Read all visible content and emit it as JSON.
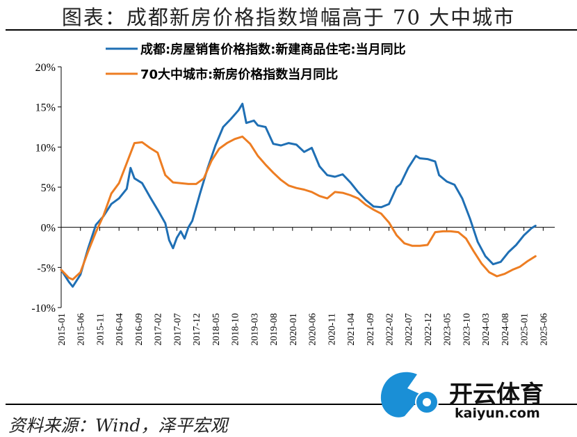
{
  "header": {
    "title": "图表：成都新房价格指数增幅高于 70 大中城市"
  },
  "footer": {
    "source": "资料来源：Wind，泽平宏观"
  },
  "watermark": {
    "brand_cn": "开云体育",
    "brand_en": "kaiyun.com",
    "colors": {
      "blue": "#1a8fd6",
      "dark": "#111111"
    }
  },
  "chart_data": {
    "type": "line",
    "title": "",
    "xlabel": "",
    "ylabel": "",
    "ylim": [
      -10,
      20
    ],
    "yticks": [
      -10,
      -5,
      0,
      5,
      10,
      15,
      20
    ],
    "ytick_labels": [
      "-10%",
      "-5%",
      "0%",
      "5%",
      "10%",
      "15%",
      "20%"
    ],
    "xlim": [
      "2015-01",
      "2025-09"
    ],
    "xtick_labels": [
      "2015-01",
      "2015-06",
      "2015-11",
      "2016-04",
      "2016-09",
      "2017-02",
      "2017-07",
      "2017-12",
      "2018-05",
      "2018-10",
      "2019-03",
      "2019-08",
      "2020-01",
      "2020-06",
      "2020-11",
      "2021-04",
      "2021-09",
      "2022-02",
      "2022-07",
      "2022-12",
      "2023-05",
      "2023-10",
      "2024-03",
      "2024-08",
      "2025-01",
      "2025-06"
    ],
    "legend_position": "top-left",
    "grid": false,
    "series": [
      {
        "name": "成都:房屋销售价格指数:新建商品住宅:当月同比",
        "color": "#1f6fb4",
        "points": [
          [
            "2015-01",
            -5.3
          ],
          [
            "2015-03",
            -6.8
          ],
          [
            "2015-04",
            -7.4
          ],
          [
            "2015-06",
            -5.9
          ],
          [
            "2015-08",
            -2.6
          ],
          [
            "2015-10",
            0.3
          ],
          [
            "2015-12",
            1.4
          ],
          [
            "2016-02",
            2.9
          ],
          [
            "2016-04",
            3.6
          ],
          [
            "2016-06",
            4.8
          ],
          [
            "2016-07",
            7.4
          ],
          [
            "2016-08",
            6.1
          ],
          [
            "2016-10",
            5.5
          ],
          [
            "2016-12",
            3.8
          ],
          [
            "2017-02",
            2.2
          ],
          [
            "2017-04",
            0.5
          ],
          [
            "2017-05",
            -1.6
          ],
          [
            "2017-06",
            -2.6
          ],
          [
            "2017-07",
            -1.3
          ],
          [
            "2017-08",
            -0.5
          ],
          [
            "2017-09",
            -1.4
          ],
          [
            "2017-10",
            0.0
          ],
          [
            "2017-11",
            0.8
          ],
          [
            "2018-01",
            4.2
          ],
          [
            "2018-03",
            7.4
          ],
          [
            "2018-05",
            10.2
          ],
          [
            "2018-07",
            12.5
          ],
          [
            "2018-09",
            13.5
          ],
          [
            "2018-11",
            14.6
          ],
          [
            "2018-12",
            15.4
          ],
          [
            "2019-01",
            13.0
          ],
          [
            "2019-03",
            13.3
          ],
          [
            "2019-04",
            12.7
          ],
          [
            "2019-06",
            12.5
          ],
          [
            "2019-08",
            10.4
          ],
          [
            "2019-10",
            10.2
          ],
          [
            "2019-12",
            10.5
          ],
          [
            "2020-02",
            10.3
          ],
          [
            "2020-04",
            9.4
          ],
          [
            "2020-06",
            9.9
          ],
          [
            "2020-08",
            7.6
          ],
          [
            "2020-10",
            6.5
          ],
          [
            "2020-12",
            6.3
          ],
          [
            "2021-02",
            6.6
          ],
          [
            "2021-04",
            5.6
          ],
          [
            "2021-06",
            4.4
          ],
          [
            "2021-08",
            3.4
          ],
          [
            "2021-10",
            2.6
          ],
          [
            "2021-12",
            2.5
          ],
          [
            "2022-02",
            2.9
          ],
          [
            "2022-04",
            5.0
          ],
          [
            "2022-05",
            5.4
          ],
          [
            "2022-07",
            7.4
          ],
          [
            "2022-09",
            8.9
          ],
          [
            "2022-10",
            8.6
          ],
          [
            "2022-12",
            8.5
          ],
          [
            "2023-02",
            8.2
          ],
          [
            "2023-03",
            6.5
          ],
          [
            "2023-05",
            5.7
          ],
          [
            "2023-07",
            5.3
          ],
          [
            "2023-09",
            3.6
          ],
          [
            "2023-11",
            1.1
          ],
          [
            "2024-01",
            -1.8
          ],
          [
            "2024-03",
            -3.6
          ],
          [
            "2024-05",
            -4.6
          ],
          [
            "2024-07",
            -4.3
          ],
          [
            "2024-09",
            -3.1
          ],
          [
            "2024-11",
            -2.2
          ],
          [
            "2025-01",
            -1.0
          ],
          [
            "2025-03",
            -0.1
          ],
          [
            "2025-04",
            0.2
          ]
        ]
      },
      {
        "name": "70大中城市:新房价格指数当月同比",
        "color": "#ed7d22",
        "points": [
          [
            "2015-01",
            -5.3
          ],
          [
            "2015-03",
            -6.3
          ],
          [
            "2015-04",
            -6.5
          ],
          [
            "2015-06",
            -5.6
          ],
          [
            "2015-08",
            -3.0
          ],
          [
            "2015-10",
            -0.6
          ],
          [
            "2015-12",
            1.5
          ],
          [
            "2016-02",
            4.2
          ],
          [
            "2016-04",
            5.5
          ],
          [
            "2016-06",
            8.0
          ],
          [
            "2016-08",
            10.5
          ],
          [
            "2016-10",
            10.6
          ],
          [
            "2016-12",
            9.9
          ],
          [
            "2017-02",
            9.3
          ],
          [
            "2017-04",
            6.5
          ],
          [
            "2017-06",
            5.6
          ],
          [
            "2017-08",
            5.5
          ],
          [
            "2017-10",
            5.4
          ],
          [
            "2017-12",
            5.4
          ],
          [
            "2018-02",
            6.1
          ],
          [
            "2018-04",
            8.3
          ],
          [
            "2018-06",
            9.8
          ],
          [
            "2018-08",
            10.5
          ],
          [
            "2018-10",
            11.0
          ],
          [
            "2018-12",
            11.3
          ],
          [
            "2019-02",
            10.4
          ],
          [
            "2019-04",
            8.9
          ],
          [
            "2019-06",
            7.8
          ],
          [
            "2019-08",
            6.8
          ],
          [
            "2019-10",
            5.9
          ],
          [
            "2019-12",
            5.2
          ],
          [
            "2020-02",
            4.9
          ],
          [
            "2020-04",
            4.7
          ],
          [
            "2020-06",
            4.4
          ],
          [
            "2020-08",
            3.9
          ],
          [
            "2020-10",
            3.6
          ],
          [
            "2020-12",
            4.4
          ],
          [
            "2021-02",
            4.3
          ],
          [
            "2021-04",
            4.0
          ],
          [
            "2021-06",
            3.6
          ],
          [
            "2021-08",
            2.8
          ],
          [
            "2021-10",
            2.2
          ],
          [
            "2021-12",
            1.7
          ],
          [
            "2022-02",
            0.6
          ],
          [
            "2022-04",
            -1.0
          ],
          [
            "2022-06",
            -2.0
          ],
          [
            "2022-08",
            -2.3
          ],
          [
            "2022-10",
            -2.3
          ],
          [
            "2022-12",
            -2.2
          ],
          [
            "2023-02",
            -0.6
          ],
          [
            "2023-04",
            -0.5
          ],
          [
            "2023-06",
            -0.5
          ],
          [
            "2023-08",
            -0.6
          ],
          [
            "2023-10",
            -1.4
          ],
          [
            "2023-12",
            -3.0
          ],
          [
            "2024-02",
            -4.5
          ],
          [
            "2024-04",
            -5.6
          ],
          [
            "2024-06",
            -6.1
          ],
          [
            "2024-08",
            -5.8
          ],
          [
            "2024-10",
            -5.3
          ],
          [
            "2024-12",
            -4.9
          ],
          [
            "2025-02",
            -4.2
          ],
          [
            "2025-04",
            -3.6
          ]
        ]
      }
    ]
  }
}
